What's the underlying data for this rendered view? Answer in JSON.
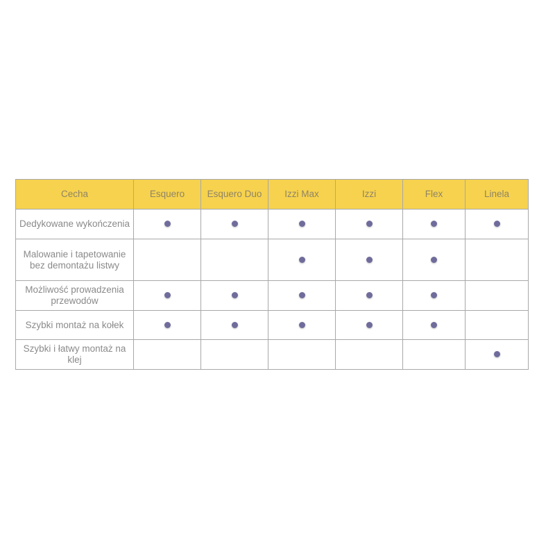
{
  "header": [
    "Cecha",
    "Esquero",
    "Esquero Duo",
    "Izzi Max",
    "Izzi",
    "Flex",
    "Linela"
  ],
  "rows": [
    {
      "feature": "Dedykowane wykończenia",
      "marks": [
        true,
        true,
        true,
        true,
        true,
        true
      ]
    },
    {
      "feature": "Malowanie i tapetowanie bez demontażu listwy",
      "marks": [
        false,
        false,
        true,
        true,
        true,
        false
      ]
    },
    {
      "feature": "Możliwość prowadzenia przewodów",
      "marks": [
        true,
        true,
        true,
        true,
        true,
        false
      ]
    },
    {
      "feature": "Szybki montaż na kołek",
      "marks": [
        true,
        true,
        true,
        true,
        true,
        false
      ]
    },
    {
      "feature": "Szybki i łatwy montaż na klej",
      "marks": [
        false,
        false,
        false,
        false,
        false,
        true
      ]
    }
  ],
  "colors": {
    "header_bg": "#f6d24e",
    "dot": "#6f6c9c"
  }
}
